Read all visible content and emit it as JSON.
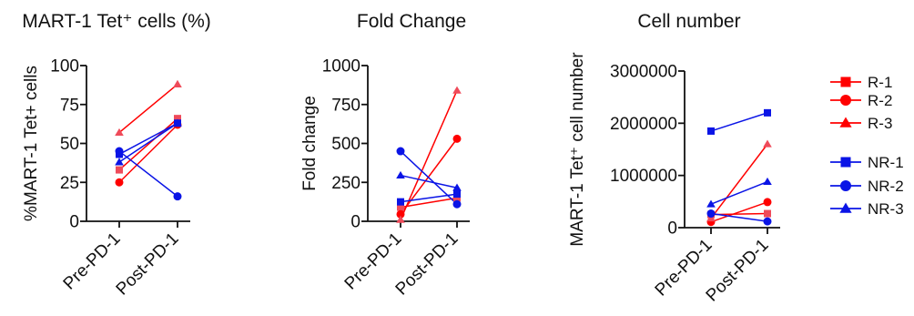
{
  "colors": {
    "R": "#ff0000",
    "R_light": "#ef4b5a",
    "NR": "#0a14e6",
    "axis": "#111111"
  },
  "legend": {
    "placement": "right",
    "entries": [
      {
        "label": "R-1",
        "color": "#ff0000",
        "marker": "square"
      },
      {
        "label": "R-2",
        "color": "#ff0000",
        "marker": "circle"
      },
      {
        "label": "R-3",
        "color": "#ff0000",
        "marker": "triangle"
      },
      {
        "label": "NR-1",
        "color": "#0a14e6",
        "marker": "square"
      },
      {
        "label": "NR-2",
        "color": "#0a14e6",
        "marker": "circle"
      },
      {
        "label": "NR-3",
        "color": "#0a14e6",
        "marker": "triangle"
      }
    ]
  },
  "chart_data": [
    {
      "type": "line",
      "title": "MART-1 Tet⁺ cells (%)",
      "ylabel": "%MART-1 Tet+ cells",
      "categories": [
        "Pre-PD-1",
        "Post-PD-1"
      ],
      "ylim": [
        0,
        100
      ],
      "yticks": [
        0,
        25,
        50,
        75,
        100
      ],
      "ytick_labels": [
        "0",
        "25",
        "50",
        "75",
        "100"
      ],
      "series": [
        {
          "name": "R-1",
          "group": "R",
          "marker": "square",
          "values": [
            33,
            66
          ]
        },
        {
          "name": "R-2",
          "group": "R",
          "marker": "circle",
          "values": [
            25,
            62
          ]
        },
        {
          "name": "R-3",
          "group": "R",
          "marker": "triangle",
          "values": [
            57,
            88
          ]
        },
        {
          "name": "NR-1",
          "group": "NR",
          "marker": "square",
          "values": [
            43,
            63
          ]
        },
        {
          "name": "NR-2",
          "group": "NR",
          "marker": "circle",
          "values": [
            45,
            16
          ]
        },
        {
          "name": "NR-3",
          "group": "NR",
          "marker": "triangle",
          "values": [
            38,
            63
          ]
        }
      ]
    },
    {
      "type": "line",
      "title": "Fold Change",
      "ylabel": "Fold change",
      "categories": [
        "Pre-PD-1",
        "Post-PD-1"
      ],
      "ylim": [
        0,
        1000
      ],
      "yticks": [
        0,
        250,
        500,
        750,
        1000
      ],
      "ytick_labels": [
        "0",
        "250",
        "500",
        "750",
        "1000"
      ],
      "series": [
        {
          "name": "R-1",
          "group": "R",
          "marker": "square",
          "values": [
            90,
            150
          ]
        },
        {
          "name": "R-2",
          "group": "R",
          "marker": "circle",
          "values": [
            45,
            530
          ]
        },
        {
          "name": "R-3",
          "group": "R",
          "marker": "triangle",
          "values": [
            10,
            840
          ]
        },
        {
          "name": "NR-1",
          "group": "NR",
          "marker": "square",
          "values": [
            125,
            175
          ]
        },
        {
          "name": "NR-2",
          "group": "NR",
          "marker": "circle",
          "values": [
            450,
            110
          ]
        },
        {
          "name": "NR-3",
          "group": "NR",
          "marker": "triangle",
          "values": [
            295,
            215
          ]
        }
      ]
    },
    {
      "type": "line",
      "title": "Cell number",
      "ylabel": "MART-1 Tet⁺ cell number",
      "categories": [
        "Pre-PD-1",
        "Post-PD-1"
      ],
      "ylim": [
        0,
        3000000
      ],
      "yticks": [
        0,
        1000000,
        2000000,
        3000000
      ],
      "ytick_labels": [
        "0",
        "1000000",
        "2000000",
        "3000000"
      ],
      "series": [
        {
          "name": "R-1",
          "group": "R",
          "marker": "square",
          "values": [
            250000,
            270000
          ]
        },
        {
          "name": "R-2",
          "group": "R",
          "marker": "circle",
          "values": [
            110000,
            490000
          ]
        },
        {
          "name": "R-3",
          "group": "R",
          "marker": "triangle",
          "values": [
            180000,
            1600000
          ]
        },
        {
          "name": "NR-1",
          "group": "NR",
          "marker": "square",
          "values": [
            1850000,
            2200000
          ]
        },
        {
          "name": "NR-2",
          "group": "NR",
          "marker": "circle",
          "values": [
            270000,
            120000
          ]
        },
        {
          "name": "NR-3",
          "group": "NR",
          "marker": "triangle",
          "values": [
            450000,
            880000
          ]
        }
      ]
    }
  ]
}
